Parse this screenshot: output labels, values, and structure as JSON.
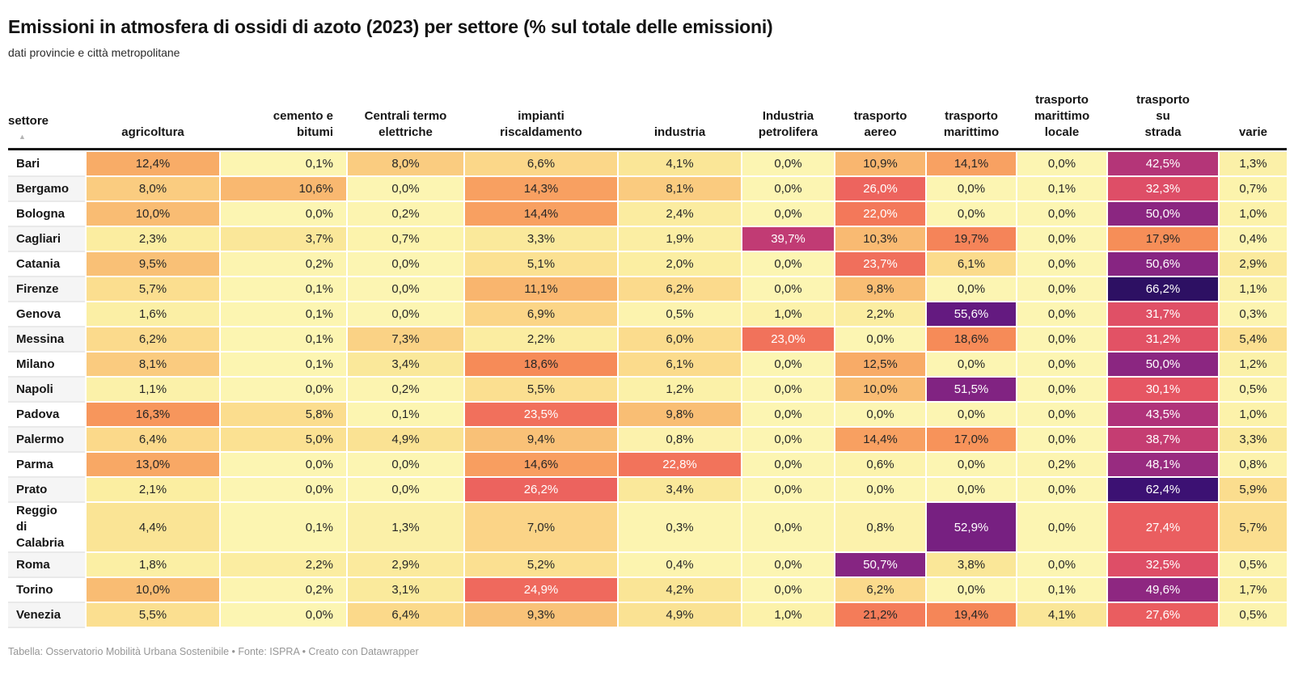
{
  "title": "Emissioni in atmosfera di ossidi di azoto (2023) per settore (% sul totale delle emissioni)",
  "subtitle": "dati provincie e città metropolitane",
  "footer": "Tabella: Osservatorio Mobilità Urbana Sostenibile • Fonte: ISPRA • Creato con Datawrapper",
  "table": {
    "sort_icon": "▲",
    "columns": [
      {
        "key": "settore",
        "label": "settore",
        "align": "left"
      },
      {
        "key": "agricoltura",
        "label": "agricoltura",
        "align": "center"
      },
      {
        "key": "cemento-e-bitumi",
        "label": "cemento e\nbitumi",
        "align": "right"
      },
      {
        "key": "centrali-termo-elettriche",
        "label": "Centrali termo\nelettriche",
        "align": "center"
      },
      {
        "key": "impianti-riscaldamento",
        "label": "impianti\nriscaldamento",
        "align": "center"
      },
      {
        "key": "industria",
        "label": "industria",
        "align": "center"
      },
      {
        "key": "industria-petrolifera",
        "label": "Industria\npetrolifera",
        "align": "center"
      },
      {
        "key": "trasporto-aereo",
        "label": "trasporto\naereo",
        "align": "center"
      },
      {
        "key": "trasporto-marittimo",
        "label": "trasporto\nmarittimo",
        "align": "center"
      },
      {
        "key": "trasporto-marittimo-locale",
        "label": "trasporto\nmarittimo\nlocale",
        "align": "center"
      },
      {
        "key": "trasporto-su-strada",
        "label": "trasporto\nsu\nstrada",
        "align": "center"
      },
      {
        "key": "varie",
        "label": "varie",
        "align": "center"
      }
    ]
  },
  "heatmap_scale": {
    "white_text_threshold": 21.6,
    "dark_text_color": "#262626",
    "light_text_color": "#ffffff",
    "stops": [
      [
        0,
        "#FCF5B2"
      ],
      [
        2,
        "#FBEEA2"
      ],
      [
        4,
        "#FAE697"
      ],
      [
        6,
        "#FBDC8D"
      ],
      [
        8,
        "#FACC80"
      ],
      [
        10,
        "#F9BC73"
      ],
      [
        12.5,
        "#F8AB67"
      ],
      [
        15,
        "#F89C5F"
      ],
      [
        18,
        "#F68E58"
      ],
      [
        21,
        "#F47D59"
      ],
      [
        24,
        "#F06D5C"
      ],
      [
        27,
        "#EB5F5F"
      ],
      [
        30,
        "#E65663"
      ],
      [
        33,
        "#DC4C68"
      ],
      [
        37,
        "#CC416F"
      ],
      [
        41,
        "#BB3876"
      ],
      [
        45,
        "#A9307C"
      ],
      [
        48.5,
        "#962A80"
      ],
      [
        51,
        "#842482"
      ],
      [
        53,
        "#762081"
      ],
      [
        56,
        "#611980"
      ],
      [
        59,
        "#4E147A"
      ],
      [
        62.5,
        "#3B1173"
      ],
      [
        67,
        "#2A1060"
      ]
    ]
  },
  "chart_data": {
    "type": "heatmap",
    "unit": "%",
    "value_format": "one decimal, comma separator, % suffix",
    "columns": [
      "agricoltura",
      "cemento e bitumi",
      "Centrali termo elettriche",
      "impianti riscaldamento",
      "industria",
      "Industria petrolifera",
      "trasporto aereo",
      "trasporto marittimo",
      "trasporto marittimo locale",
      "trasporto su strada",
      "varie"
    ],
    "rows": [
      {
        "name": "Bari",
        "values": [
          12.4,
          0.1,
          8.0,
          6.6,
          4.1,
          0.0,
          10.9,
          14.1,
          0.0,
          42.5,
          1.3
        ]
      },
      {
        "name": "Bergamo",
        "values": [
          8.0,
          10.6,
          0.0,
          14.3,
          8.1,
          0.0,
          26.0,
          0.0,
          0.1,
          32.3,
          0.7
        ]
      },
      {
        "name": "Bologna",
        "values": [
          10.0,
          0.0,
          0.2,
          14.4,
          2.4,
          0.0,
          22.0,
          0.0,
          0.0,
          50.0,
          1.0
        ]
      },
      {
        "name": "Cagliari",
        "values": [
          2.3,
          3.7,
          0.7,
          3.3,
          1.9,
          39.7,
          10.3,
          19.7,
          0.0,
          17.9,
          0.4
        ]
      },
      {
        "name": "Catania",
        "values": [
          9.5,
          0.2,
          0.0,
          5.1,
          2.0,
          0.0,
          23.7,
          6.1,
          0.0,
          50.6,
          2.9
        ]
      },
      {
        "name": "Firenze",
        "values": [
          5.7,
          0.1,
          0.0,
          11.1,
          6.2,
          0.0,
          9.8,
          0.0,
          0.0,
          66.2,
          1.1
        ]
      },
      {
        "name": "Genova",
        "values": [
          1.6,
          0.1,
          0.0,
          6.9,
          0.5,
          1.0,
          2.2,
          55.6,
          0.0,
          31.7,
          0.3
        ]
      },
      {
        "name": "Messina",
        "values": [
          6.2,
          0.1,
          7.3,
          2.2,
          6.0,
          23.0,
          0.0,
          18.6,
          0.0,
          31.2,
          5.4
        ]
      },
      {
        "name": "Milano",
        "values": [
          8.1,
          0.1,
          3.4,
          18.6,
          6.1,
          0.0,
          12.5,
          0.0,
          0.0,
          50.0,
          1.2
        ]
      },
      {
        "name": "Napoli",
        "values": [
          1.1,
          0.0,
          0.2,
          5.5,
          1.2,
          0.0,
          10.0,
          51.5,
          0.0,
          30.1,
          0.5
        ]
      },
      {
        "name": "Padova",
        "values": [
          16.3,
          5.8,
          0.1,
          23.5,
          9.8,
          0.0,
          0.0,
          0.0,
          0.0,
          43.5,
          1.0
        ]
      },
      {
        "name": "Palermo",
        "values": [
          6.4,
          5.0,
          4.9,
          9.4,
          0.8,
          0.0,
          14.4,
          17.0,
          0.0,
          38.7,
          3.3
        ]
      },
      {
        "name": "Parma",
        "values": [
          13.0,
          0.0,
          0.0,
          14.6,
          22.8,
          0.0,
          0.6,
          0.0,
          0.2,
          48.1,
          0.8
        ]
      },
      {
        "name": "Prato",
        "values": [
          2.1,
          0.0,
          0.0,
          26.2,
          3.4,
          0.0,
          0.0,
          0.0,
          0.0,
          62.4,
          5.9
        ]
      },
      {
        "name": "Reggio di Calabria",
        "display": "Reggio\ndi\nCalabria",
        "values": [
          4.4,
          0.1,
          1.3,
          7.0,
          0.3,
          0.0,
          0.8,
          52.9,
          0.0,
          27.4,
          5.7
        ]
      },
      {
        "name": "Roma",
        "values": [
          1.8,
          2.2,
          2.9,
          5.2,
          0.4,
          0.0,
          50.7,
          3.8,
          0.0,
          32.5,
          0.5
        ]
      },
      {
        "name": "Torino",
        "values": [
          10.0,
          0.2,
          3.1,
          24.9,
          4.2,
          0.0,
          6.2,
          0.0,
          0.1,
          49.6,
          1.7
        ]
      },
      {
        "name": "Venezia",
        "values": [
          5.5,
          0.0,
          6.4,
          9.3,
          4.9,
          1.0,
          21.2,
          19.4,
          4.1,
          27.6,
          0.5
        ]
      }
    ]
  }
}
